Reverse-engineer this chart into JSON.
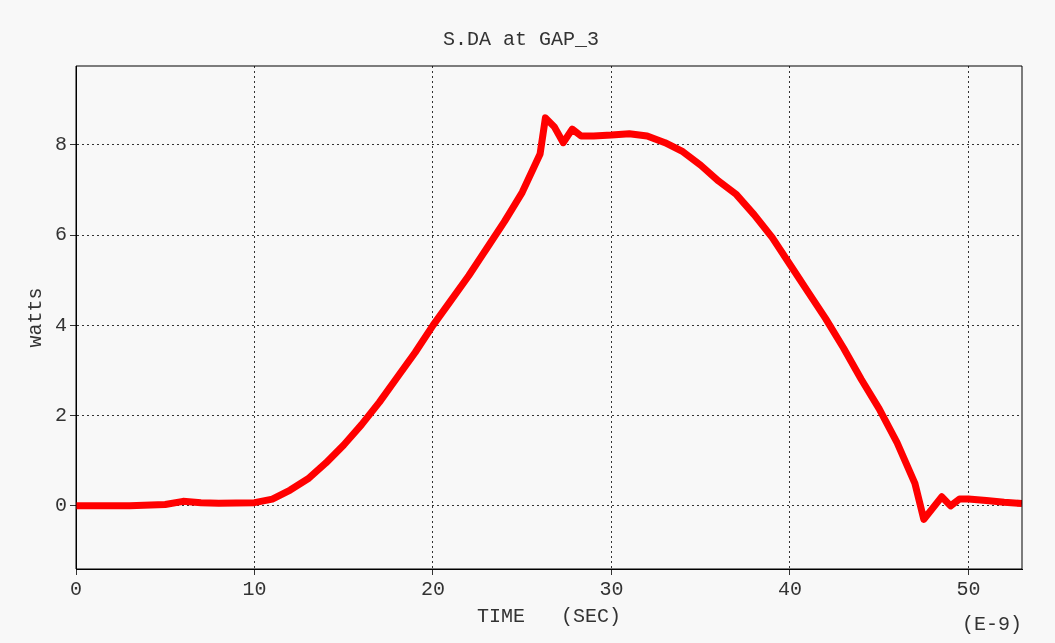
{
  "chart_data": {
    "type": "line",
    "title": "S.DA at GAP_3",
    "xlabel": "TIME   (SEC)",
    "ylabel": "watts",
    "annotations": [
      "(E-9)"
    ],
    "x": [
      0,
      3,
      5,
      6,
      7,
      8,
      10,
      11,
      12,
      13,
      14,
      15,
      16,
      17,
      18,
      19,
      20,
      21,
      22,
      23,
      24,
      25,
      26,
      26.3,
      26.8,
      27.3,
      27.8,
      28.3,
      29,
      30,
      31,
      32,
      33,
      34,
      35,
      36,
      37,
      38,
      39,
      40,
      41,
      42,
      43,
      44,
      45,
      46,
      47,
      47.5,
      48,
      48.5,
      49,
      49.5,
      50,
      51,
      52,
      53
    ],
    "series": [
      {
        "color": "#ff0000",
        "values": [
          0,
          0,
          0.03,
          0.1,
          0.07,
          0.06,
          0.07,
          0.15,
          0.35,
          0.6,
          0.95,
          1.35,
          1.8,
          2.3,
          2.85,
          3.4,
          4.0,
          4.55,
          5.1,
          5.7,
          6.3,
          6.95,
          7.8,
          8.6,
          8.4,
          8.05,
          8.35,
          8.2,
          8.2,
          8.22,
          8.25,
          8.2,
          8.05,
          7.85,
          7.55,
          7.2,
          6.9,
          6.45,
          5.95,
          5.35,
          4.75,
          4.15,
          3.5,
          2.8,
          2.15,
          1.4,
          0.5,
          -0.3,
          -0.05,
          0.2,
          0,
          0.15,
          0.15,
          0.12,
          0.08,
          0.05
        ]
      }
    ],
    "xlim": [
      0,
      53
    ],
    "xticks": [
      0,
      10,
      20,
      30,
      40,
      50
    ],
    "ylim": [
      -1.4,
      9.75
    ],
    "yticks": [
      0,
      2,
      4,
      6,
      8
    ],
    "grid": true,
    "legend": false
  }
}
